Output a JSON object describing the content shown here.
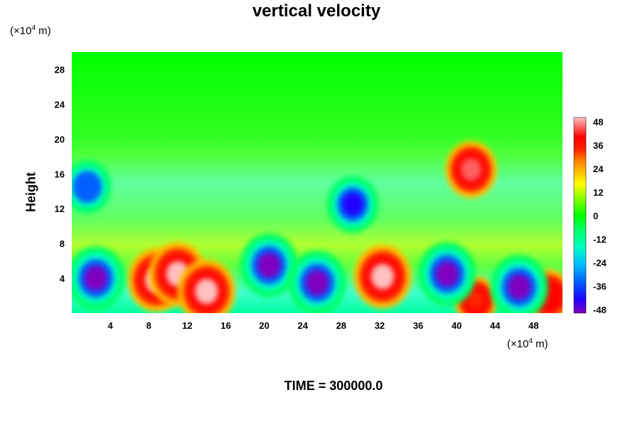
{
  "title": "vertical velocity",
  "y_unit": {
    "prefix": "(×10",
    "exp": "4",
    "suffix": " m)"
  },
  "x_unit": {
    "prefix": "(×10",
    "exp": "4",
    "suffix": " m)"
  },
  "footer": "TIME = 300000.0",
  "chart_data": {
    "type": "heatmap",
    "title": "vertical velocity",
    "xlabel": "",
    "ylabel": "Height",
    "x_ticks": [
      "4",
      "8",
      "12",
      "16",
      "20",
      "24",
      "28",
      "32",
      "36",
      "40",
      "44",
      "48"
    ],
    "y_ticks": [
      "4",
      "8",
      "12",
      "16",
      "20",
      "24",
      "28"
    ],
    "xlim": [
      0,
      51
    ],
    "ylim": [
      0,
      30
    ],
    "colorbar": {
      "ticks": [
        "48",
        "36",
        "24",
        "12",
        "0",
        "-12",
        "-24",
        "-36",
        "-48"
      ],
      "range": [
        -48,
        48
      ],
      "colors": [
        "#8000c0",
        "#2000ff",
        "#0060ff",
        "#00c0ff",
        "#00ffc0",
        "#00ff60",
        "#00ff00",
        "#80ff00",
        "#ffff00",
        "#ffc000",
        "#ff8000",
        "#ff2000",
        "#ff0000",
        "#ff6060",
        "#ffc0c0"
      ]
    },
    "features": [
      {
        "kind": "updraft",
        "x": 8.8,
        "y": 3.8,
        "value": 48
      },
      {
        "kind": "updraft",
        "x": 11.0,
        "y": 4.5,
        "value": 48
      },
      {
        "kind": "updraft",
        "x": 14.0,
        "y": 2.5,
        "value": 48
      },
      {
        "kind": "updraft",
        "x": 32.3,
        "y": 4.2,
        "value": 48
      },
      {
        "kind": "updraft",
        "x": 42.0,
        "y": 1.5,
        "value": 30
      },
      {
        "kind": "updraft",
        "x": 49.5,
        "y": 2.0,
        "value": 36
      },
      {
        "kind": "updraft",
        "x": 41.5,
        "y": 16.5,
        "value": 40
      },
      {
        "kind": "downdraft",
        "x": 2.5,
        "y": 4.0,
        "value": -48
      },
      {
        "kind": "downdraft",
        "x": 20.5,
        "y": 5.5,
        "value": -48
      },
      {
        "kind": "downdraft",
        "x": 25.5,
        "y": 3.5,
        "value": -48
      },
      {
        "kind": "downdraft",
        "x": 39.0,
        "y": 4.5,
        "value": -48
      },
      {
        "kind": "downdraft",
        "x": 46.5,
        "y": 3.0,
        "value": -48
      },
      {
        "kind": "downdraft",
        "x": 29.2,
        "y": 12.5,
        "value": -40
      },
      {
        "kind": "downdraft",
        "x": 1.6,
        "y": 14.5,
        "value": -36
      }
    ]
  }
}
